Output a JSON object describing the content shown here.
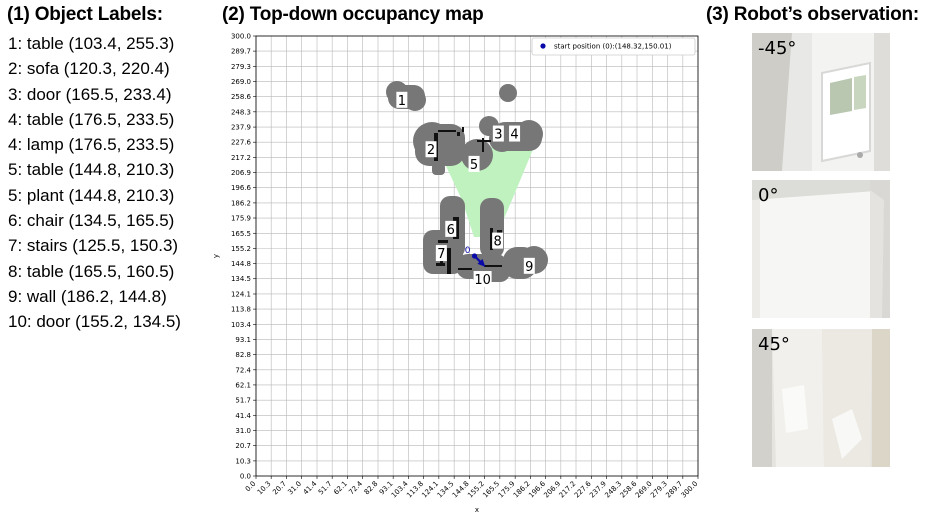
{
  "panels": {
    "labels_title": "(1) Object Labels:",
    "map_title": "(2) Top-down occupancy map",
    "obs_title": "(3) Robot’s observation:"
  },
  "object_labels": [
    "1: table (103.4, 255.3)",
    "2: sofa (120.3, 220.4)",
    "3: door (165.5, 233.4)",
    "4: table (176.5, 233.5)",
    "4: lamp (176.5, 233.5)",
    "5: table (144.8, 210.3)",
    "5: plant (144.8, 210.3)",
    "6: chair (134.5, 165.5)",
    "7: stairs (125.5, 150.3)",
    "8: table (165.5, 160.5)",
    "9: wall (186.2, 144.8)",
    "10: door (155.2, 134.5)"
  ],
  "chart_data": {
    "type": "scatter",
    "xlabel": "x",
    "ylabel": "y",
    "xlim": [
      0,
      300
    ],
    "ylim": [
      0,
      300
    ],
    "grid": true,
    "tick_values": [
      0,
      10.3,
      20.7,
      31.0,
      41.4,
      51.7,
      62.1,
      72.4,
      82.8,
      93.1,
      103.4,
      113.8,
      124.1,
      134.5,
      144.8,
      155.2,
      165.5,
      175.9,
      186.2,
      196.6,
      206.9,
      217.2,
      227.6,
      237.9,
      248.3,
      258.6,
      269.0,
      279.3,
      289.7,
      300.0
    ],
    "tick_labels": [
      "0.0",
      "10.3",
      "20.7",
      "31.0",
      "41.4",
      "51.7",
      "62.1",
      "72.4",
      "82.8",
      "93.1",
      "103.4",
      "113.8",
      "124.1",
      "134.5",
      "144.8",
      "155.2",
      "165.5",
      "175.9",
      "186.2",
      "196.6",
      "206.9",
      "217.2",
      "227.6",
      "237.9",
      "248.3",
      "258.6",
      "269.0",
      "279.3",
      "289.7",
      "300.0"
    ],
    "legend": {
      "label": "start position (0):(148.32,150.01)",
      "placement": "top-right",
      "color": "#1a1aa6"
    },
    "start_position": {
      "x": 148.32,
      "y": 150.01,
      "label": "0"
    },
    "heading_deg": -45,
    "colors": {
      "occupied": "#777777",
      "free": "#bff2bf",
      "start": "#0a0aa8",
      "wall": "#111111"
    },
    "map_markers": [
      {
        "id": "1",
        "x": 99.0,
        "y": 256.5
      },
      {
        "id": "2",
        "x": 118.8,
        "y": 222.8
      },
      {
        "id": "3",
        "x": 164.5,
        "y": 233.5
      },
      {
        "id": "4",
        "x": 175.5,
        "y": 233.5
      },
      {
        "id": "5",
        "x": 148.0,
        "y": 212.8
      },
      {
        "id": "6",
        "x": 132.2,
        "y": 168.5
      },
      {
        "id": "7",
        "x": 125.8,
        "y": 152.0
      },
      {
        "id": "8",
        "x": 164.0,
        "y": 160.5
      },
      {
        "id": "9",
        "x": 185.5,
        "y": 143.3
      },
      {
        "id": "10",
        "x": 153.8,
        "y": 134.3
      }
    ]
  },
  "observations": [
    {
      "angle": "-45°"
    },
    {
      "angle": "0°"
    },
    {
      "angle": "45°"
    }
  ]
}
